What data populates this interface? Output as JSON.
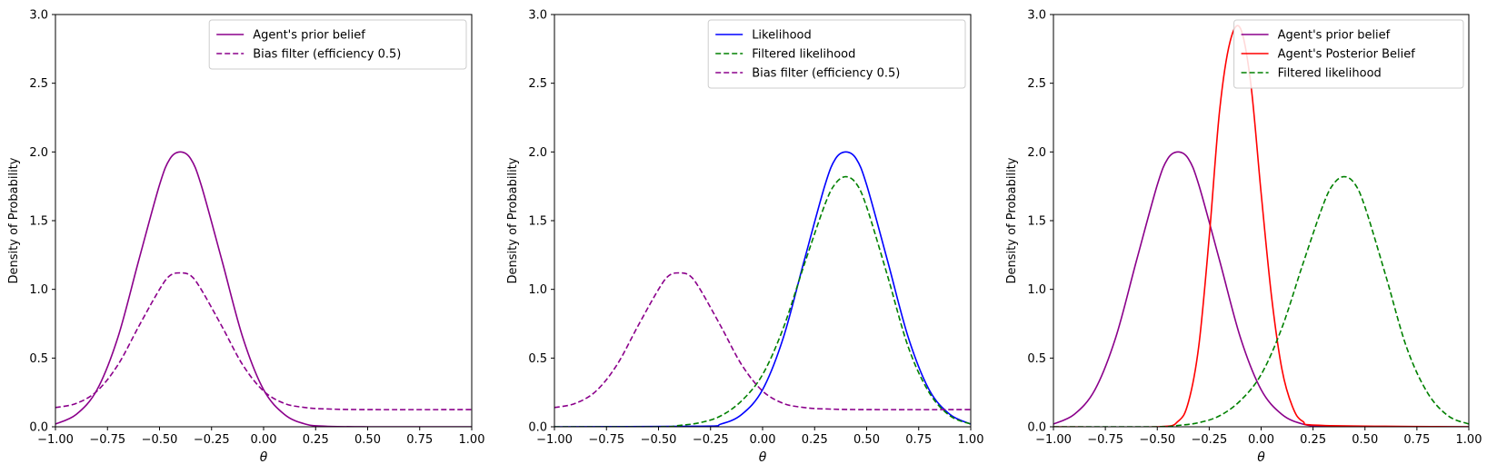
{
  "chart_data": [
    {
      "type": "line",
      "xlabel": "θ",
      "ylabel": "Density of Probability",
      "xlim": [
        -1.0,
        1.0
      ],
      "ylim": [
        0.0,
        3.0
      ],
      "xticks": [
        "−1.00",
        "−0.75",
        "−0.50",
        "−0.25",
        "0.00",
        "0.25",
        "0.50",
        "0.75",
        "1.00"
      ],
      "yticks": [
        "0.0",
        "0.5",
        "1.0",
        "1.5",
        "2.0",
        "2.5",
        "3.0"
      ],
      "legend_position": "top-right",
      "series": [
        {
          "name": "Agent's prior belief",
          "color": "#8b008b",
          "style": "solid",
          "x": [
            -1.0,
            -0.9,
            -0.8,
            -0.7,
            -0.6,
            -0.5,
            -0.45,
            -0.4,
            -0.35,
            -0.3,
            -0.2,
            -0.1,
            0.0,
            0.1,
            0.2,
            0.3,
            0.5,
            1.0
          ],
          "y": [
            0.02,
            0.09,
            0.27,
            0.65,
            1.21,
            1.76,
            1.95,
            2.0,
            1.95,
            1.76,
            1.21,
            0.65,
            0.27,
            0.09,
            0.02,
            0.004,
            0.0,
            0.0
          ]
        },
        {
          "name": "Bias filter (efficiency 0.5)",
          "color": "#8b008b",
          "style": "dashed",
          "x": [
            -1.0,
            -0.9,
            -0.8,
            -0.7,
            -0.6,
            -0.5,
            -0.45,
            -0.4,
            -0.35,
            -0.3,
            -0.2,
            -0.1,
            0.0,
            0.1,
            0.2,
            0.3,
            0.5,
            1.0
          ],
          "y": [
            0.14,
            0.17,
            0.26,
            0.45,
            0.73,
            1.0,
            1.1,
            1.12,
            1.1,
            1.0,
            0.73,
            0.45,
            0.26,
            0.17,
            0.14,
            0.13,
            0.125,
            0.125
          ]
        }
      ]
    },
    {
      "type": "line",
      "xlabel": "θ",
      "ylabel": "Density of Probability",
      "xlim": [
        -1.0,
        1.0
      ],
      "ylim": [
        0.0,
        3.0
      ],
      "xticks": [
        "−1.00",
        "−0.75",
        "−0.50",
        "−0.25",
        "0.00",
        "0.25",
        "0.50",
        "0.75",
        "1.00"
      ],
      "yticks": [
        "0.0",
        "0.5",
        "1.0",
        "1.5",
        "2.0",
        "2.5",
        "3.0"
      ],
      "legend_position": "top-right",
      "series": [
        {
          "name": "Likelihood",
          "color": "#0000ff",
          "style": "solid",
          "x": [
            -1.0,
            -0.3,
            -0.2,
            -0.1,
            0.0,
            0.1,
            0.2,
            0.3,
            0.35,
            0.4,
            0.45,
            0.5,
            0.6,
            0.7,
            0.8,
            0.9,
            1.0
          ],
          "y": [
            0.0,
            0.004,
            0.02,
            0.09,
            0.27,
            0.65,
            1.21,
            1.76,
            1.95,
            2.0,
            1.95,
            1.76,
            1.21,
            0.65,
            0.27,
            0.09,
            0.02
          ]
        },
        {
          "name": "Filtered likelihood",
          "color": "#008000",
          "style": "dashed",
          "x": [
            -1.0,
            -0.5,
            -0.4,
            -0.3,
            -0.2,
            -0.1,
            0.0,
            0.1,
            0.2,
            0.3,
            0.35,
            0.4,
            0.45,
            0.5,
            0.6,
            0.7,
            0.8,
            0.9,
            1.0
          ],
          "y": [
            0.0,
            0.0,
            0.01,
            0.03,
            0.08,
            0.19,
            0.38,
            0.72,
            1.18,
            1.62,
            1.77,
            1.82,
            1.77,
            1.6,
            1.1,
            0.58,
            0.25,
            0.08,
            0.02
          ]
        },
        {
          "name": "Bias filter (efficiency 0.5)",
          "color": "#8b008b",
          "style": "dashed",
          "x": [
            -1.0,
            -0.9,
            -0.8,
            -0.7,
            -0.6,
            -0.5,
            -0.45,
            -0.4,
            -0.35,
            -0.3,
            -0.2,
            -0.1,
            0.0,
            0.1,
            0.2,
            0.3,
            0.5,
            1.0
          ],
          "y": [
            0.14,
            0.17,
            0.26,
            0.45,
            0.73,
            1.0,
            1.1,
            1.12,
            1.1,
            1.0,
            0.73,
            0.45,
            0.26,
            0.17,
            0.14,
            0.13,
            0.125,
            0.125
          ]
        }
      ]
    },
    {
      "type": "line",
      "xlabel": "θ",
      "ylabel": "Density of Probability",
      "xlim": [
        -1.0,
        1.0
      ],
      "ylim": [
        0.0,
        3.0
      ],
      "xticks": [
        "−1.00",
        "−0.75",
        "−0.50",
        "−0.25",
        "0.00",
        "0.25",
        "0.50",
        "0.75",
        "1.00"
      ],
      "yticks": [
        "0.0",
        "0.5",
        "1.0",
        "1.5",
        "2.0",
        "2.5",
        "3.0"
      ],
      "legend_position": "top-right",
      "series": [
        {
          "name": "Agent's prior belief",
          "color": "#8b008b",
          "style": "solid",
          "x": [
            -1.0,
            -0.9,
            -0.8,
            -0.7,
            -0.6,
            -0.5,
            -0.45,
            -0.4,
            -0.35,
            -0.3,
            -0.2,
            -0.1,
            0.0,
            0.1,
            0.2,
            0.3,
            0.5,
            1.0
          ],
          "y": [
            0.02,
            0.09,
            0.27,
            0.65,
            1.21,
            1.76,
            1.95,
            2.0,
            1.95,
            1.76,
            1.21,
            0.65,
            0.27,
            0.09,
            0.02,
            0.004,
            0.0,
            0.0
          ]
        },
        {
          "name": "Agent's Posterior Belief",
          "color": "#ff0000",
          "style": "solid",
          "x": [
            -1.0,
            -0.5,
            -0.4,
            -0.35,
            -0.3,
            -0.25,
            -0.2,
            -0.15,
            -0.1,
            -0.05,
            0.0,
            0.05,
            0.1,
            0.15,
            0.2,
            0.3,
            1.0
          ],
          "y": [
            0.0,
            0.0,
            0.04,
            0.18,
            0.59,
            1.38,
            2.3,
            2.8,
            2.9,
            2.5,
            1.7,
            0.95,
            0.42,
            0.15,
            0.04,
            0.01,
            0.0
          ]
        },
        {
          "name": "Filtered likelihood",
          "color": "#008000",
          "style": "dashed",
          "x": [
            -1.0,
            -0.5,
            -0.4,
            -0.3,
            -0.2,
            -0.1,
            0.0,
            0.1,
            0.2,
            0.3,
            0.35,
            0.4,
            0.45,
            0.5,
            0.6,
            0.7,
            0.8,
            0.9,
            1.0
          ],
          "y": [
            0.0,
            0.0,
            0.01,
            0.03,
            0.08,
            0.19,
            0.38,
            0.72,
            1.18,
            1.62,
            1.77,
            1.82,
            1.77,
            1.6,
            1.1,
            0.58,
            0.25,
            0.08,
            0.02
          ]
        }
      ]
    }
  ]
}
